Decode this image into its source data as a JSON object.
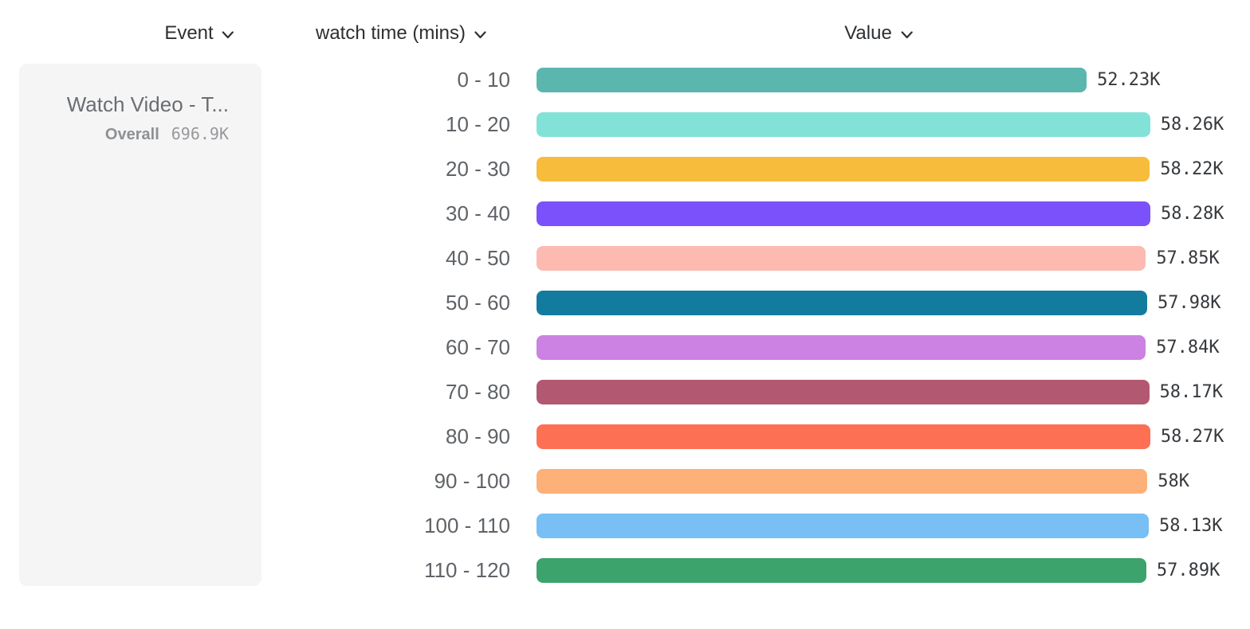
{
  "header": {
    "event_label": "Event",
    "breakdown_label": "watch time (mins)",
    "value_label": "Value"
  },
  "event_panel": {
    "event_name": "Watch Video - T...",
    "overall_label": "Overall",
    "overall_value": "696.9K"
  },
  "chart_data": {
    "type": "bar",
    "orientation": "horizontal",
    "title": "",
    "xlabel": "Value",
    "ylabel": "watch time (mins)",
    "xlim": [
      0,
      58280
    ],
    "grid": false,
    "legend": "none",
    "categories": [
      "0 - 10",
      "10 - 20",
      "20 - 30",
      "30 - 40",
      "40 - 50",
      "50 - 60",
      "60 - 70",
      "70 - 80",
      "80 - 90",
      "90 - 100",
      "100 - 110",
      "110 - 120"
    ],
    "values": [
      52230,
      58260,
      58220,
      58280,
      57850,
      57980,
      57840,
      58170,
      58270,
      58000,
      58130,
      57890
    ],
    "value_labels": [
      "52.23K",
      "58.26K",
      "58.22K",
      "58.28K",
      "57.85K",
      "57.98K",
      "57.84K",
      "58.17K",
      "58.27K",
      "58K",
      "58.13K",
      "57.89K"
    ],
    "bar_colors": [
      "#5bb7ae",
      "#82e2d7",
      "#f7bc3c",
      "#7b51fb",
      "#fdbab0",
      "#137c9e",
      "#cb82e2",
      "#b25971",
      "#fd7053",
      "#fdb078",
      "#77bff5",
      "#3ca36c"
    ]
  }
}
